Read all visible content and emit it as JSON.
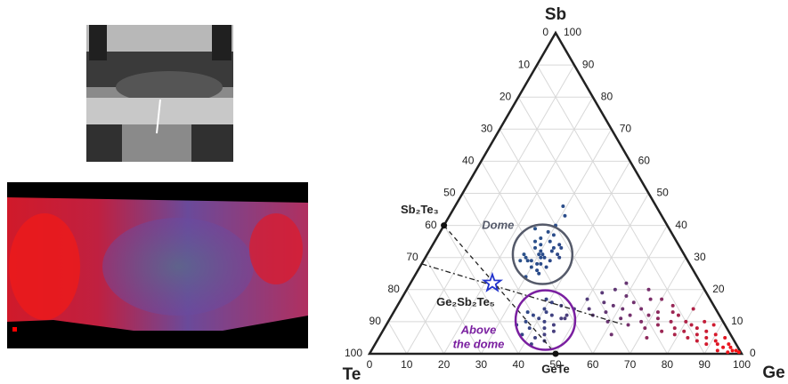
{
  "chart_data": {
    "type": "ternary",
    "axes": {
      "top": "Sb",
      "left": "Te",
      "right": "Ge"
    },
    "bottom_ticks": [
      0,
      10,
      20,
      30,
      40,
      50,
      60,
      70,
      80,
      90,
      100
    ],
    "left_ticks": [
      0,
      10,
      20,
      30,
      40,
      50,
      60,
      70,
      80,
      90,
      100
    ],
    "right_ticks": [
      0,
      10,
      20,
      30,
      40,
      50,
      60,
      70,
      80,
      90,
      100
    ],
    "grid": true,
    "color_scale": [
      "#2f6a8a",
      "#2a4a8a",
      "#7a2e6a",
      "#ff1010"
    ],
    "points": {
      "ge": [
        30,
        32,
        28,
        34,
        31,
        29,
        33,
        27,
        35,
        31,
        30,
        32,
        26,
        36,
        29,
        33,
        31,
        28,
        34,
        30,
        32,
        27,
        35,
        30,
        31,
        29,
        33,
        28,
        34,
        31,
        26,
        30,
        25,
        29,
        31,
        38,
        42,
        45,
        40,
        36,
        44,
        47,
        41,
        39,
        43,
        46,
        37,
        48,
        42,
        40,
        44,
        35,
        41,
        45,
        39,
        43,
        47,
        38,
        42,
        46,
        50,
        52,
        53,
        54,
        55,
        56,
        57,
        58,
        59,
        60,
        61,
        62,
        63,
        64,
        65,
        66,
        67,
        68,
        69,
        70,
        71,
        72,
        73,
        74,
        75,
        76,
        77,
        78,
        79,
        80,
        81,
        82,
        83,
        84,
        85,
        86,
        87,
        88,
        89,
        90,
        91,
        92,
        93,
        94,
        95,
        96,
        97,
        98,
        65,
        70,
        58,
        75,
        80,
        85,
        62,
        72,
        88,
        93,
        99,
        96
      ],
      "sb": [
        31,
        30,
        33,
        29,
        28,
        34,
        32,
        30,
        31,
        35,
        27,
        26,
        31,
        30,
        29,
        33,
        37,
        36,
        27,
        32,
        28,
        35,
        33,
        40,
        43,
        38,
        25,
        29,
        34,
        31,
        29,
        24,
        39,
        46,
        30,
        12,
        10,
        9,
        14,
        13,
        6,
        11,
        16,
        8,
        12,
        7,
        10,
        14,
        5,
        11,
        15,
        9,
        13,
        4,
        17,
        8,
        12,
        6,
        3,
        11,
        17,
        14,
        19,
        12,
        16,
        20,
        13,
        15,
        10,
        18,
        14,
        11,
        16,
        12,
        9,
        14,
        17,
        10,
        12,
        8,
        13,
        11,
        9,
        15,
        7,
        10,
        12,
        8,
        6,
        10,
        7,
        9,
        5,
        8,
        6,
        4,
        7,
        5,
        3,
        6,
        4,
        3,
        5,
        2,
        3,
        2,
        1,
        1,
        20,
        17,
        22,
        13,
        14,
        10,
        6,
        5,
        9,
        1,
        0.5,
        0.5
      ]
    },
    "compounds": [
      {
        "label": "Sb₂Te₃",
        "ge": 0,
        "sb": 40,
        "marker": "dot"
      },
      {
        "label": "GeTe",
        "ge": 50,
        "sb": 0,
        "marker": "dot"
      },
      {
        "label": "Ge₂Sb₂Te₅",
        "ge": 22,
        "sb": 22,
        "marker": "star"
      }
    ],
    "lines": [
      {
        "from": [
          0,
          40
        ],
        "to": [
          50,
          0
        ]
      },
      {
        "from": [
          0,
          28
        ],
        "to": [
          64,
          9
        ]
      }
    ],
    "regions": [
      {
        "label": [
          "Dome"
        ],
        "center": [
          31,
          31
        ],
        "radius": 8,
        "color": "#555a6a"
      },
      {
        "label": [
          "Above",
          "the dome"
        ],
        "center": [
          42,
          10.5
        ],
        "radius": 8,
        "color": "#7a1fa0"
      }
    ]
  }
}
